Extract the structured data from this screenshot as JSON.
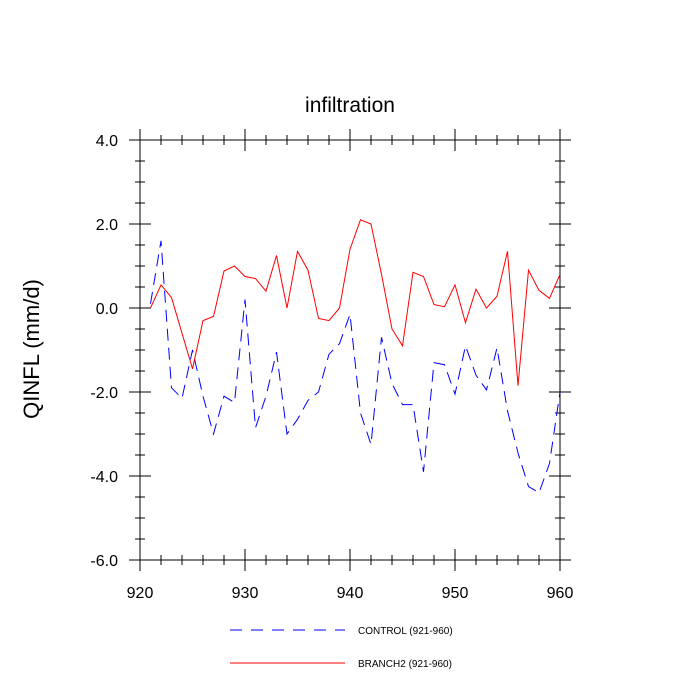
{
  "chart_data": {
    "type": "line",
    "title": "infiltration",
    "xlabel": "",
    "ylabel": "QINFL  (mm/d)",
    "xlim": [
      920,
      960
    ],
    "ylim": [
      -6.0,
      4.0
    ],
    "xticks": [
      920,
      930,
      940,
      950,
      960
    ],
    "xtick_labels": [
      "920",
      "930",
      "940",
      "950",
      "960"
    ],
    "yticks": [
      4.0,
      2.0,
      0.0,
      -2.0,
      -4.0,
      -6.0
    ],
    "ytick_labels": [
      "4.0",
      "2.0",
      "0.0",
      "-2.0",
      "-4.0",
      "-6.0"
    ],
    "grid": false,
    "legend_position": "bottom",
    "x": [
      921,
      922,
      923,
      924,
      925,
      926,
      927,
      928,
      929,
      930,
      931,
      932,
      933,
      934,
      935,
      936,
      937,
      938,
      939,
      940,
      941,
      942,
      943,
      944,
      945,
      946,
      947,
      948,
      949,
      950,
      951,
      952,
      953,
      954,
      955,
      956,
      957,
      958,
      959,
      960
    ],
    "series": [
      {
        "name": "CONTROL (921-960)",
        "color": "#0000ff",
        "style": "dashed",
        "values": [
          0.1,
          1.6,
          -1.9,
          -2.15,
          -1.0,
          -2.1,
          -3.0,
          -2.1,
          -2.25,
          0.2,
          -2.85,
          -2.1,
          -1.05,
          -3.0,
          -2.65,
          -2.2,
          -2.0,
          -1.1,
          -0.85,
          -0.15,
          -2.5,
          -3.25,
          -0.7,
          -1.8,
          -2.3,
          -2.3,
          -3.9,
          -1.3,
          -1.35,
          -2.05,
          -0.9,
          -1.6,
          -1.95,
          -0.95,
          -2.45,
          -3.45,
          -4.25,
          -4.4,
          -3.7,
          -2.0
        ]
      },
      {
        "name": "BRANCH2 (921-960)",
        "color": "#ff0000",
        "style": "solid",
        "values": [
          0.0,
          0.55,
          0.25,
          -0.6,
          -1.45,
          -0.3,
          -0.2,
          0.88,
          1.0,
          0.75,
          0.7,
          0.4,
          1.25,
          0.0,
          1.35,
          0.9,
          -0.25,
          -0.3,
          0.0,
          1.4,
          2.1,
          2.0,
          0.8,
          -0.5,
          -0.9,
          0.85,
          0.75,
          0.08,
          0.03,
          0.55,
          -0.35,
          0.45,
          0.0,
          0.28,
          1.35,
          -1.85,
          0.9,
          0.42,
          0.23,
          0.8
        ]
      }
    ]
  }
}
